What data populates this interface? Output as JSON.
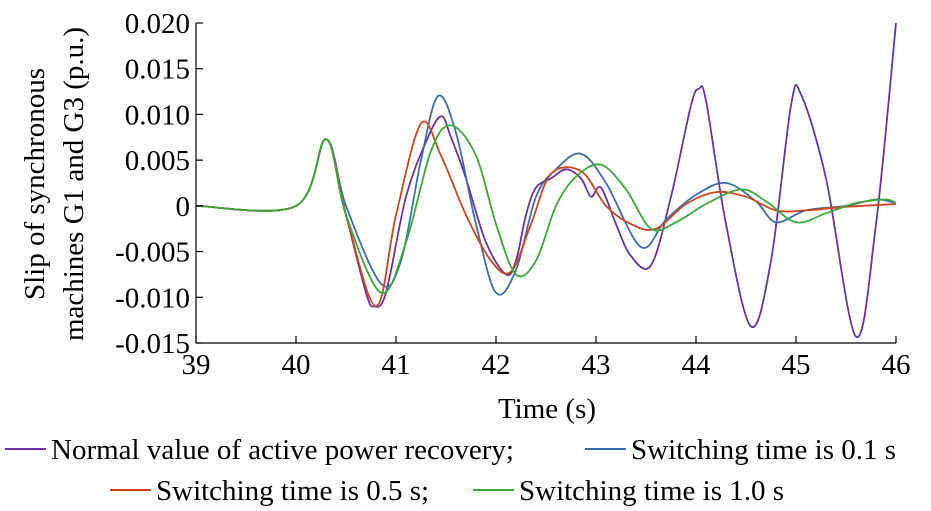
{
  "chart_data": {
    "type": "line",
    "title": "",
    "xlabel": "Time (s)",
    "ylabel_line1": "Slip of synchronous",
    "ylabel_line2": "machines G1 and G3 (p.u.)",
    "xlim": [
      39,
      46
    ],
    "ylim": [
      -0.015,
      0.02
    ],
    "xticks": [
      "39",
      "40",
      "41",
      "42",
      "43",
      "44",
      "45",
      "46"
    ],
    "yticks": [
      "-0.015",
      "-0.010",
      "-0.005",
      "0",
      "0.005",
      "0.010",
      "0.015",
      "0.020"
    ],
    "grid": false,
    "legend_placement": "bottom",
    "legend": {
      "row1": [
        "Normal value of active power recovery;",
        "Switching time is 0.1 s"
      ],
      "row2": [
        "Switching time is 0.5 s;",
        "Switching time is 1.0 s"
      ]
    },
    "series": [
      {
        "name": "Normal value of active power recovery",
        "color": "#7030a0",
        "x": [
          39,
          40,
          40.3,
          40.5,
          40.7,
          40.78,
          40.9,
          41.1,
          41.3,
          41.45,
          41.55,
          41.7,
          41.9,
          42.1,
          42.2,
          42.3,
          42.4,
          42.55,
          42.7,
          42.85,
          42.95,
          43.05,
          43.2,
          43.35,
          43.55,
          43.75,
          43.95,
          44.03,
          44.1,
          44.3,
          44.55,
          44.75,
          44.95,
          45.05,
          45.3,
          45.6,
          45.8,
          46
        ],
        "y": [
          0,
          0,
          0.0073,
          -0.001,
          -0.0095,
          -0.011,
          -0.0095,
          0.001,
          0.007,
          0.0098,
          0.0075,
          0.003,
          -0.004,
          -0.0075,
          -0.006,
          -0.001,
          0.002,
          0.003,
          0.004,
          0.003,
          0.001,
          0.002,
          -0.002,
          -0.0055,
          -0.0065,
          0.001,
          0.011,
          0.0128,
          0.0115,
          -0.002,
          -0.0132,
          -0.006,
          0.011,
          0.0122,
          0.003,
          -0.0143,
          -0.002,
          0.02
        ]
      },
      {
        "name": "Switching time is 0.1 s",
        "color": "#3b6db2",
        "x": [
          39,
          40,
          40.3,
          40.5,
          40.85,
          41.05,
          41.25,
          41.42,
          41.6,
          41.8,
          42,
          42.2,
          42.4,
          42.6,
          42.85,
          43.1,
          43.45,
          43.7,
          44.0,
          44.3,
          44.6,
          44.8,
          45.1,
          45.5,
          45.8,
          46
        ],
        "y": [
          0,
          0,
          0.0073,
          0.0,
          -0.0085,
          -0.006,
          0.005,
          0.012,
          0.008,
          -0.002,
          -0.0095,
          -0.007,
          0.001,
          0.004,
          0.0057,
          0.0025,
          -0.0045,
          -0.0015,
          0.0012,
          0.0025,
          0.0005,
          -0.0018,
          -0.0005,
          0.0,
          0.0007,
          0.0003
        ]
      },
      {
        "name": "Switching time is 0.5 s",
        "color": "#d0451b",
        "x": [
          39,
          40,
          40.3,
          40.5,
          40.8,
          41.0,
          41.25,
          41.45,
          41.7,
          41.95,
          42.15,
          42.35,
          42.55,
          42.85,
          43.1,
          43.35,
          43.6,
          43.9,
          44.2,
          44.5,
          44.8,
          45.1,
          45.5,
          46
        ],
        "y": [
          0,
          0,
          0.0073,
          -0.001,
          -0.011,
          -0.001,
          0.009,
          0.0055,
          -0.001,
          -0.006,
          -0.0072,
          -0.002,
          0.0035,
          0.0038,
          0.0,
          -0.002,
          -0.0025,
          0.0002,
          0.0015,
          0.001,
          -0.0005,
          -0.0005,
          -0.0001,
          0.0002
        ]
      },
      {
        "name": "Switching time is 1.0 s",
        "color": "#3aaa35",
        "x": [
          39,
          40,
          40.3,
          40.5,
          40.85,
          41.1,
          41.35,
          41.55,
          41.8,
          42.0,
          42.2,
          42.4,
          42.6,
          42.8,
          43.05,
          43.3,
          43.55,
          43.8,
          44.1,
          44.45,
          44.7,
          45.0,
          45.3,
          45.6,
          45.9,
          46
        ],
        "y": [
          0,
          0,
          0.0073,
          -0.001,
          -0.0095,
          -0.004,
          0.006,
          0.0088,
          0.0055,
          -0.002,
          -0.0075,
          -0.006,
          0.0,
          0.0032,
          0.0045,
          0.0018,
          -0.0025,
          -0.0018,
          0.0002,
          0.0018,
          0.0005,
          -0.0018,
          -0.0008,
          0.0003,
          0.0007,
          0.0003
        ]
      }
    ]
  }
}
